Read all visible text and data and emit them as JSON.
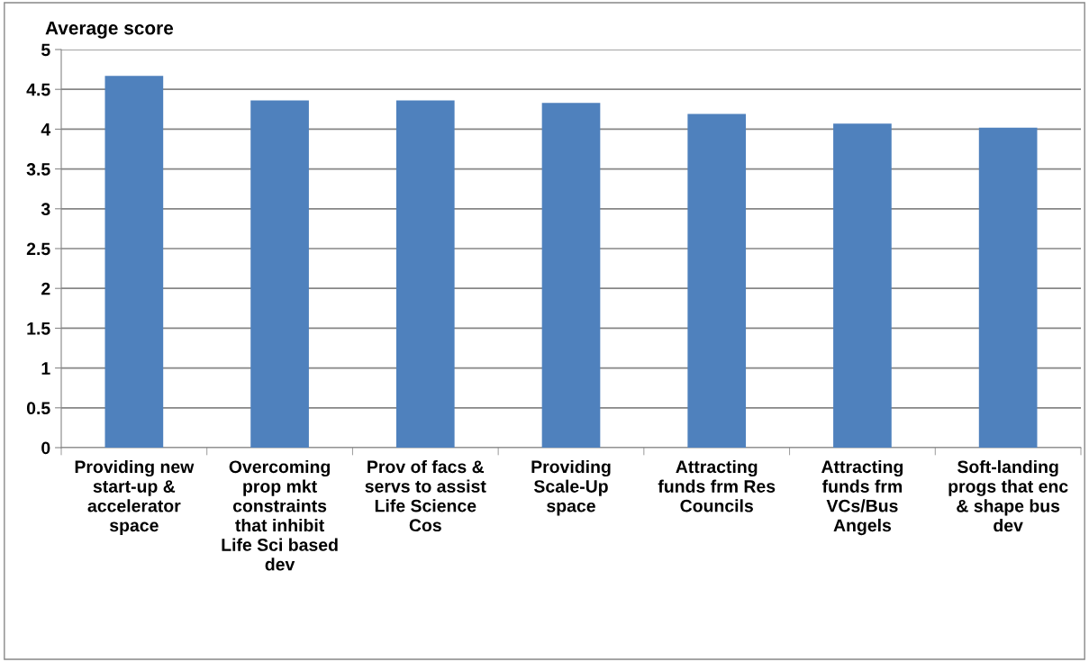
{
  "chart_data": {
    "type": "bar",
    "ylabel": "Average score",
    "categories": [
      "Providing new\nstart-up &\naccelerator\nspace",
      "Overcoming\nprop mkt\nconstraints\nthat inhibit\nLife Sci based\ndev",
      "Prov of facs &\nservs to assist\nLife Science\nCos",
      "Providing\nScale-Up\nspace",
      "Attracting\nfunds frm Res\nCouncils",
      "Attracting\nfunds frm\nVCs/Bus\nAngels",
      "Soft-landing\nprogs that enc\n& shape bus\ndev"
    ],
    "values": [
      4.67,
      4.36,
      4.36,
      4.33,
      4.19,
      4.07,
      4.02
    ],
    "color": "#4f81bd",
    "ylim": [
      0,
      5
    ],
    "yticks": [
      0,
      0.5,
      1,
      1.5,
      2,
      2.5,
      3,
      3.5,
      4,
      4.5,
      5
    ],
    "grid": "y"
  }
}
